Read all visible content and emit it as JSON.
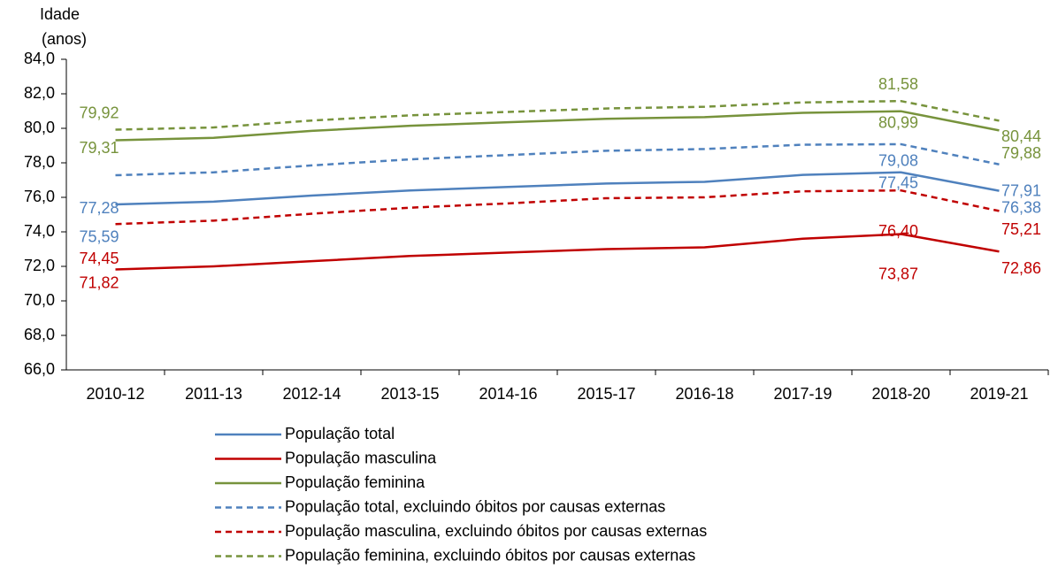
{
  "chart_data": {
    "type": "line",
    "ylabel_lines": [
      "Idade",
      "(anos)"
    ],
    "categories": [
      "2010-12",
      "2011-13",
      "2012-14",
      "2013-15",
      "2014-16",
      "2015-17",
      "2016-18",
      "2017-19",
      "2018-20",
      "2019-21"
    ],
    "ylim": [
      66,
      84
    ],
    "yticks": [
      {
        "value": 66,
        "label": "66,0"
      },
      {
        "value": 68,
        "label": "68,0"
      },
      {
        "value": 70,
        "label": "70,0"
      },
      {
        "value": 72,
        "label": "72,0"
      },
      {
        "value": 74,
        "label": "74,0"
      },
      {
        "value": 76,
        "label": "76,0"
      },
      {
        "value": 78,
        "label": "78,0"
      },
      {
        "value": 80,
        "label": "80,0"
      },
      {
        "value": 82,
        "label": "82,0"
      },
      {
        "value": 84,
        "label": "84,0"
      }
    ],
    "series": [
      {
        "name": "População total",
        "color": "#4f81bd",
        "dashed": false,
        "values": [
          75.59,
          75.75,
          76.1,
          76.4,
          76.6,
          76.8,
          76.9,
          77.3,
          77.45,
          76.38
        ],
        "value_labels": [
          "75,59",
          null,
          null,
          null,
          null,
          null,
          null,
          null,
          "77,45",
          "76,38"
        ]
      },
      {
        "name": "População masculina",
        "color": "#c00000",
        "dashed": false,
        "values": [
          71.82,
          72.0,
          72.3,
          72.6,
          72.8,
          73.0,
          73.1,
          73.6,
          73.87,
          72.86
        ],
        "value_labels": [
          "71,82",
          null,
          null,
          null,
          null,
          null,
          null,
          null,
          "73,87",
          "72,86"
        ]
      },
      {
        "name": "População feminina",
        "color": "#77933c",
        "dashed": false,
        "values": [
          79.31,
          79.45,
          79.85,
          80.15,
          80.35,
          80.55,
          80.65,
          80.9,
          80.99,
          79.88
        ],
        "value_labels": [
          "79,31",
          null,
          null,
          null,
          null,
          null,
          null,
          null,
          "80,99",
          "79,88"
        ]
      },
      {
        "name": "População total, excluindo óbitos por causas externas",
        "color": "#4f81bd",
        "dashed": true,
        "values": [
          77.28,
          77.45,
          77.85,
          78.2,
          78.45,
          78.7,
          78.8,
          79.05,
          79.08,
          77.91
        ],
        "value_labels": [
          "77,28",
          null,
          null,
          null,
          null,
          null,
          null,
          null,
          "79,08",
          "77,91"
        ]
      },
      {
        "name": "População masculina, excluindo óbitos por causas externas",
        "color": "#c00000",
        "dashed": true,
        "values": [
          74.45,
          74.65,
          75.05,
          75.4,
          75.65,
          75.95,
          76.0,
          76.35,
          76.4,
          75.21
        ],
        "value_labels": [
          "74,45",
          null,
          null,
          null,
          null,
          null,
          null,
          null,
          "76,40",
          "75,21"
        ]
      },
      {
        "name": "População feminina, excluindo óbitos por causas externas",
        "color": "#77933c",
        "dashed": true,
        "values": [
          79.92,
          80.05,
          80.45,
          80.75,
          80.95,
          81.15,
          81.25,
          81.5,
          81.58,
          80.44
        ],
        "value_labels": [
          "79,92",
          null,
          null,
          null,
          null,
          null,
          null,
          null,
          "81,58",
          "80,44"
        ]
      }
    ]
  }
}
